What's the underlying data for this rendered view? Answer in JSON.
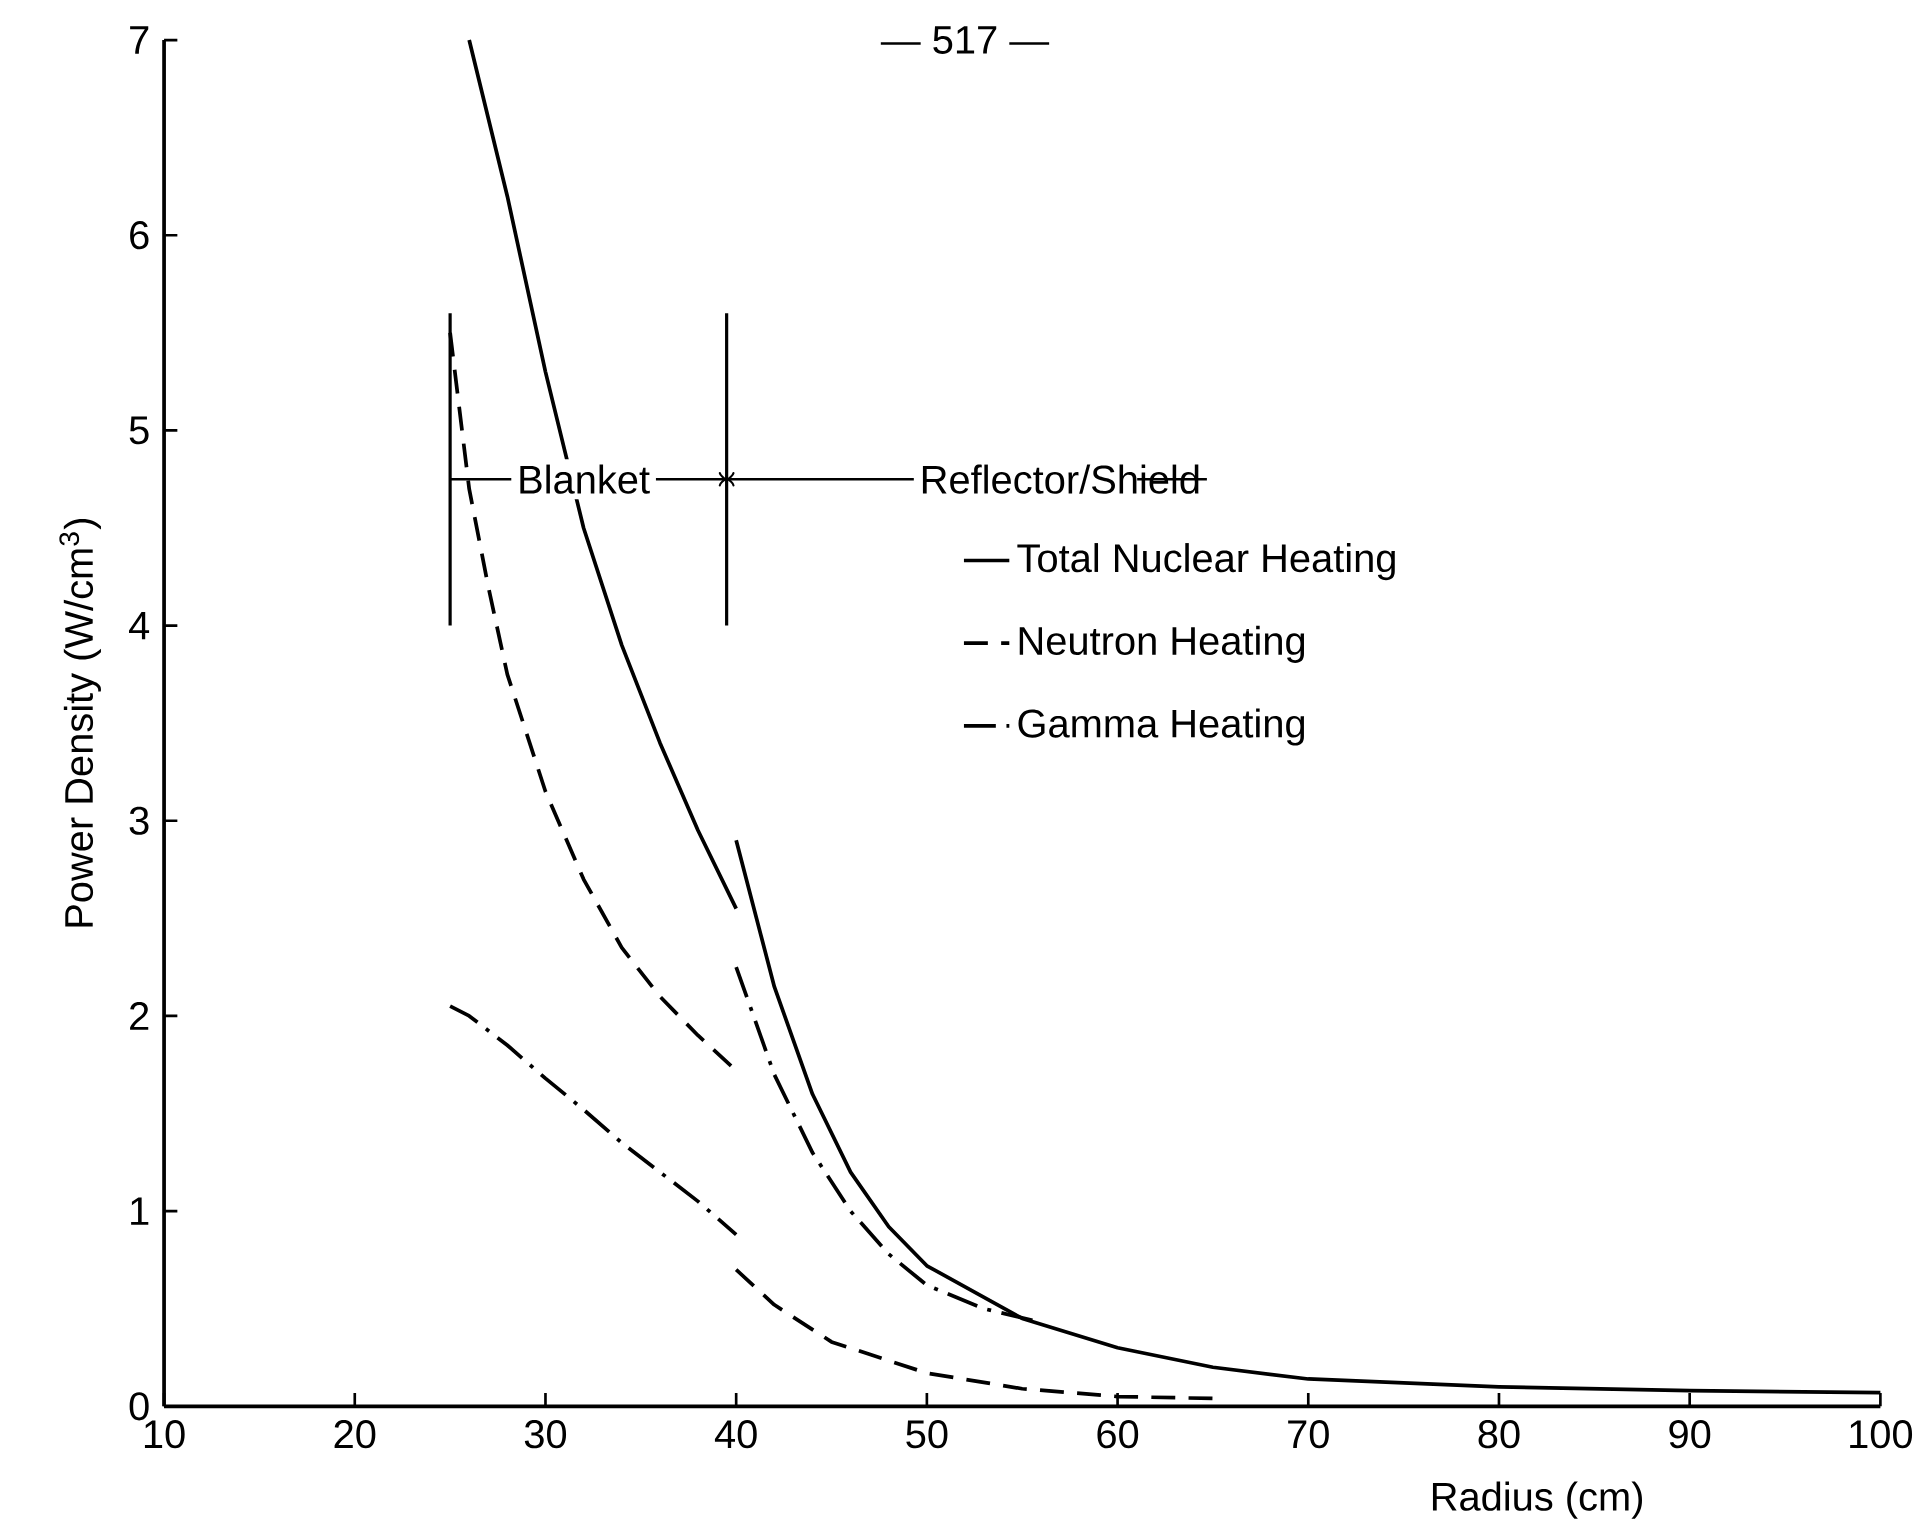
{
  "chart_data": {
    "type": "line",
    "xlabel": "Radius (cm)",
    "ylabel": "Power Density (W/cm$^{3}$)",
    "xlim": [
      10,
      100
    ],
    "ylim": [
      0,
      7
    ],
    "xticks": [
      10,
      20,
      30,
      40,
      50,
      60,
      70,
      80,
      90,
      100
    ],
    "yticks": [
      0,
      1,
      2,
      3,
      4,
      5,
      6,
      7
    ],
    "grid": false,
    "legend": "right",
    "marker": "none",
    "series": [
      {
        "name": "Total Nuclear Heating",
        "color": "#000000",
        "line_style": "solid",
        "x": [
          26,
          28,
          30,
          32,
          34,
          36,
          38,
          40,
          null,
          40,
          42,
          44,
          46,
          48,
          50,
          55,
          60,
          65,
          70,
          80,
          90,
          100
        ],
        "values": [
          7.0,
          6.2,
          5.3,
          4.5,
          3.9,
          3.4,
          2.95,
          2.55,
          null,
          2.9,
          2.15,
          1.6,
          1.2,
          0.92,
          0.72,
          0.45,
          0.3,
          0.2,
          0.14,
          0.1,
          0.08,
          0.07
        ]
      },
      {
        "name": "Neutron Heating",
        "color": "#000000",
        "line_style": "dashed",
        "x": [
          25,
          26,
          27,
          28,
          30,
          32,
          34,
          36,
          38,
          40,
          null,
          40,
          42,
          45,
          50,
          55,
          60,
          65
        ],
        "values": [
          5.5,
          4.7,
          4.2,
          3.75,
          3.15,
          2.7,
          2.35,
          2.1,
          1.9,
          1.72,
          null,
          0.7,
          0.52,
          0.33,
          0.17,
          0.09,
          0.05,
          0.04
        ]
      },
      {
        "name": "Gamma Heating",
        "color": "#000000",
        "line_style": "dashdot",
        "x": [
          25,
          26,
          28,
          30,
          32,
          34,
          36,
          38,
          40,
          null,
          40,
          42,
          44,
          46,
          48,
          50,
          53,
          56
        ],
        "values": [
          2.05,
          2.0,
          1.85,
          1.68,
          1.52,
          1.35,
          1.2,
          1.05,
          0.88,
          null,
          2.25,
          1.7,
          1.3,
          1.0,
          0.78,
          0.62,
          0.5,
          0.43
        ]
      }
    ],
    "ref_lines": [
      {
        "axis": "x",
        "value": 25
      },
      {
        "axis": "x",
        "value": 39.5
      }
    ],
    "annotations": [
      "— 517 —",
      {
        "text": "Blanket",
        "x": 32,
        "y": 4.75
      },
      "Reflector/Shield"
    ]
  }
}
